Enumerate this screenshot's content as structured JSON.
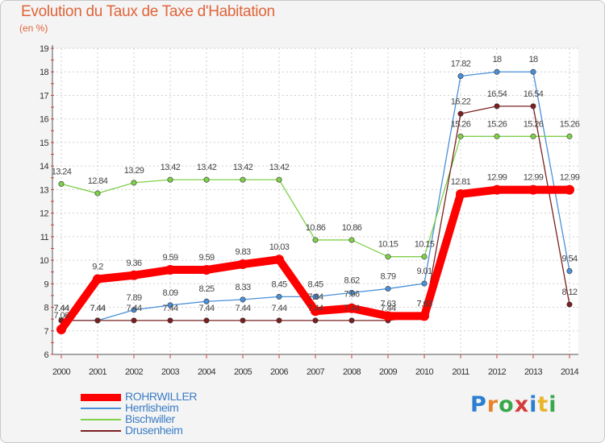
{
  "header": {
    "title": "Evolution du Taux de Taxe d'Habitation",
    "subtitle": "(en %)"
  },
  "logo": {
    "text": "Proxiti",
    "letter_colors": [
      "#2b7fd0",
      "#e8832a",
      "#3aa84a",
      "#d43c3c",
      "#2b7fd0",
      "#e8b52a",
      "#3aa84a"
    ]
  },
  "chart_data": {
    "type": "line",
    "title": "Evolution du Taux de Taxe d'Habitation",
    "subtitle": "(en %)",
    "xlabel": "",
    "ylabel": "",
    "x": [
      "2000",
      "2001",
      "2002",
      "2003",
      "2004",
      "2005",
      "2006",
      "2007",
      "2008",
      "2009",
      "2010",
      "2011",
      "2012",
      "2013",
      "2014"
    ],
    "ylim": [
      6,
      19
    ],
    "yticks": [
      6,
      7,
      8,
      9,
      10,
      11,
      12,
      13,
      14,
      15,
      16,
      17,
      18,
      19
    ],
    "grid": true,
    "legend_position": "bottom-left",
    "series": [
      {
        "name": "ROHRWILLER",
        "color": "#ff0000",
        "emphasis": true,
        "values": [
          7.06,
          9.2,
          9.36,
          9.59,
          9.59,
          9.83,
          10.03,
          7.84,
          7.96,
          7.63,
          7.63,
          12.81,
          12.99,
          12.99,
          12.99
        ],
        "labels": [
          "7.06",
          "9.2",
          "9.36",
          "9.59",
          "9.59",
          "9.83",
          "10.03",
          "7.84",
          "7.96",
          "7.63",
          "7.63",
          "12.81",
          "12.99",
          "12.99",
          "12.99"
        ],
        "label_dy": [
          -14,
          -12,
          -12,
          -12,
          -12,
          -12,
          -12,
          -14,
          -14,
          -12,
          -12,
          -12,
          -12,
          -12,
          -12
        ]
      },
      {
        "name": "Herrlisheim",
        "color": "#4a90d9",
        "values": [
          7.44,
          7.44,
          7.89,
          8.09,
          8.25,
          8.33,
          8.45,
          8.45,
          8.62,
          8.79,
          9.01,
          17.82,
          18,
          18,
          9.54
        ],
        "labels": [
          "7.44",
          "7.44",
          "7.89",
          "8.09",
          "8.25",
          "8.33",
          "8.45",
          "8.45",
          "8.62",
          "8.79",
          "9.01",
          "17.82",
          "18",
          "18",
          "9.54"
        ],
        "label_dy": [
          -12,
          -12,
          -12,
          -12,
          -12,
          -12,
          -12,
          -12,
          -12,
          -12,
          -12,
          -12,
          -12,
          -12,
          -12
        ]
      },
      {
        "name": "Bischwiller",
        "color": "#7fd04a",
        "values": [
          13.24,
          12.84,
          13.29,
          13.42,
          13.42,
          13.42,
          13.42,
          10.86,
          10.86,
          10.15,
          10.15,
          15.26,
          15.26,
          15.26,
          15.26
        ],
        "labels": [
          "13.24",
          "12.84",
          "13.29",
          "13.42",
          "13.42",
          "13.42",
          "13.42",
          "10.86",
          "10.86",
          "10.15",
          "10.15",
          "15.26",
          "15.26",
          "15.26",
          "15.26"
        ],
        "label_dy": [
          -12,
          -12,
          -12,
          -12,
          -12,
          -12,
          -12,
          -12,
          -12,
          -12,
          -12,
          -12,
          -12,
          -12,
          -12
        ]
      },
      {
        "name": "Drusenheim",
        "color": "#7a2020",
        "values": [
          7.44,
          7.44,
          7.44,
          7.44,
          7.44,
          7.44,
          7.44,
          7.44,
          7.44,
          7.44,
          7.63,
          16.22,
          16.54,
          16.54,
          8.12
        ],
        "labels": [
          "7.44",
          "7.44",
          "7.44",
          "7.44",
          "7.44",
          "7.44",
          "7.44",
          "7.44",
          "7.44",
          "7.44",
          "7.63",
          "16.22",
          "16.54",
          "16.54",
          "8.12"
        ],
        "label_dy": [
          -12,
          -12,
          -12,
          -12,
          -12,
          -12,
          -12,
          -12,
          -12,
          -12,
          -12,
          -12,
          -12,
          -12,
          -12
        ]
      }
    ]
  }
}
